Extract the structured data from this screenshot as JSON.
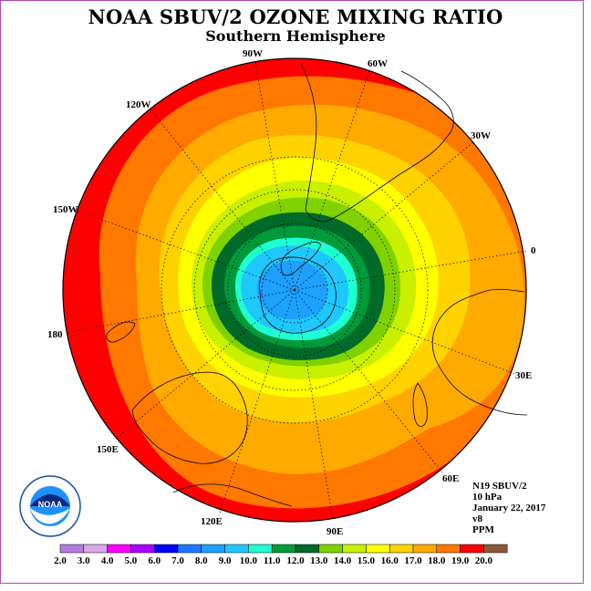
{
  "title": "NOAA SBUV/2 OZONE MIXING RATIO",
  "subtitle": "Southern Hemisphere",
  "longitude_labels": [
    "90W",
    "60W",
    "30W",
    "0",
    "30E",
    "60E",
    "90E",
    "120E",
    "150E",
    "180",
    "150W",
    "120W"
  ],
  "info": {
    "satellite": "N19 SBUV/2",
    "level": "10 hPa",
    "date": "January 22, 2017",
    "version": "v8",
    "units": "PPM"
  },
  "logo_text": "NOAA",
  "colorbar": {
    "labels": [
      "2.0",
      "3.0",
      "4.0",
      "5.0",
      "6.0",
      "7.0",
      "8.0",
      "9.0",
      "10.0",
      "11.0",
      "12.0",
      "13.0",
      "14.0",
      "15.0",
      "16.0",
      "17.0",
      "18.0",
      "19.0",
      "20.0"
    ],
    "colors": [
      "#b47ddd",
      "#d9a7e6",
      "#ff00ff",
      "#aa00ff",
      "#0000ff",
      "#1e78ff",
      "#1ea0ff",
      "#1ec8ff",
      "#1effd2",
      "#009a3a",
      "#006a28",
      "#7fd200",
      "#c8f000",
      "#ffff00",
      "#ffd200",
      "#ffaa00",
      "#ff7800",
      "#ff0000",
      "#8a5a3a"
    ]
  },
  "colors": {
    "red": "#ff0000",
    "orange_red": "#ff7800",
    "orange": "#ffaa00",
    "light_orange": "#ffd200",
    "yellow": "#ffff00",
    "yellow_green": "#c8f000",
    "light_green": "#7fd200",
    "dark_green": "#006a28",
    "green": "#009a3a",
    "cyan": "#1effd2",
    "light_blue": "#1ec8ff",
    "blue": "#1ea0ff",
    "frame": "#b04ab0"
  }
}
